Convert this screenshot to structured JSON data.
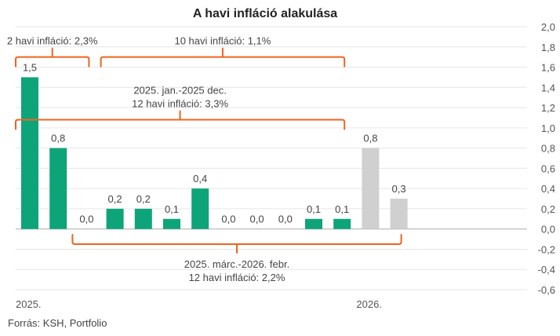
{
  "chart_data": {
    "type": "bar",
    "title": "A havi infláció alakulása",
    "source": "Forrás: KSH, Portfolio",
    "ylim": [
      -0.6,
      2.0
    ],
    "yticks": [
      "2,0",
      "1,8",
      "1,6",
      "1,4",
      "1,2",
      "1,0",
      "0,8",
      "0,6",
      "0,4",
      "0,2",
      "0,0",
      "-0,2",
      "-0,4",
      "-0,6"
    ],
    "ytick_values": [
      2.0,
      1.8,
      1.6,
      1.4,
      1.2,
      1.0,
      0.8,
      0.6,
      0.4,
      0.2,
      0.0,
      -0.2,
      -0.4,
      -0.6
    ],
    "year_labels": [
      {
        "text": "2025.",
        "index": 0
      },
      {
        "text": "2026.",
        "index": 12
      }
    ],
    "values": [
      1.5,
      0.8,
      0.0,
      0.2,
      0.2,
      0.1,
      0.4,
      0.0,
      0.0,
      0.0,
      0.1,
      0.1,
      0.8,
      0.3
    ],
    "value_labels": [
      "1,5",
      "0,8",
      "0,0",
      "0,2",
      "0,2",
      "0,1",
      "0,4",
      "0,0",
      "0,0",
      "0,0",
      "0,1",
      "0,1",
      "0,8",
      "0,3"
    ],
    "series_status": [
      "actual",
      "actual",
      "actual",
      "actual",
      "actual",
      "actual",
      "actual",
      "actual",
      "actual",
      "actual",
      "actual",
      "actual",
      "forecast",
      "forecast"
    ],
    "colors": {
      "actual": "#0ea47a",
      "forecast": "#d0d0d0",
      "bracket": "#f0641e",
      "grid": "#e6e6e6",
      "zero": "#aaaaaa"
    },
    "annotations": [
      {
        "lines": [
          "2 havi infláció: 2,3%"
        ],
        "from": 0,
        "to": 2,
        "side": "above",
        "level": 1.7
      },
      {
        "lines": [
          "10 havi infláció: 1,1%"
        ],
        "from": 3,
        "to": 11,
        "side": "above",
        "level": 1.7
      },
      {
        "lines": [
          "2025. jan.-2025 dec.",
          "12 havi infláció: 3,3%"
        ],
        "from": 0,
        "to": 11,
        "side": "above",
        "level": 1.08
      },
      {
        "lines": [
          "2025. márc.-2026. febr.",
          "12 havi infláció: 2,2%"
        ],
        "from": 2,
        "to": 13,
        "side": "below",
        "level": -0.15
      }
    ]
  }
}
